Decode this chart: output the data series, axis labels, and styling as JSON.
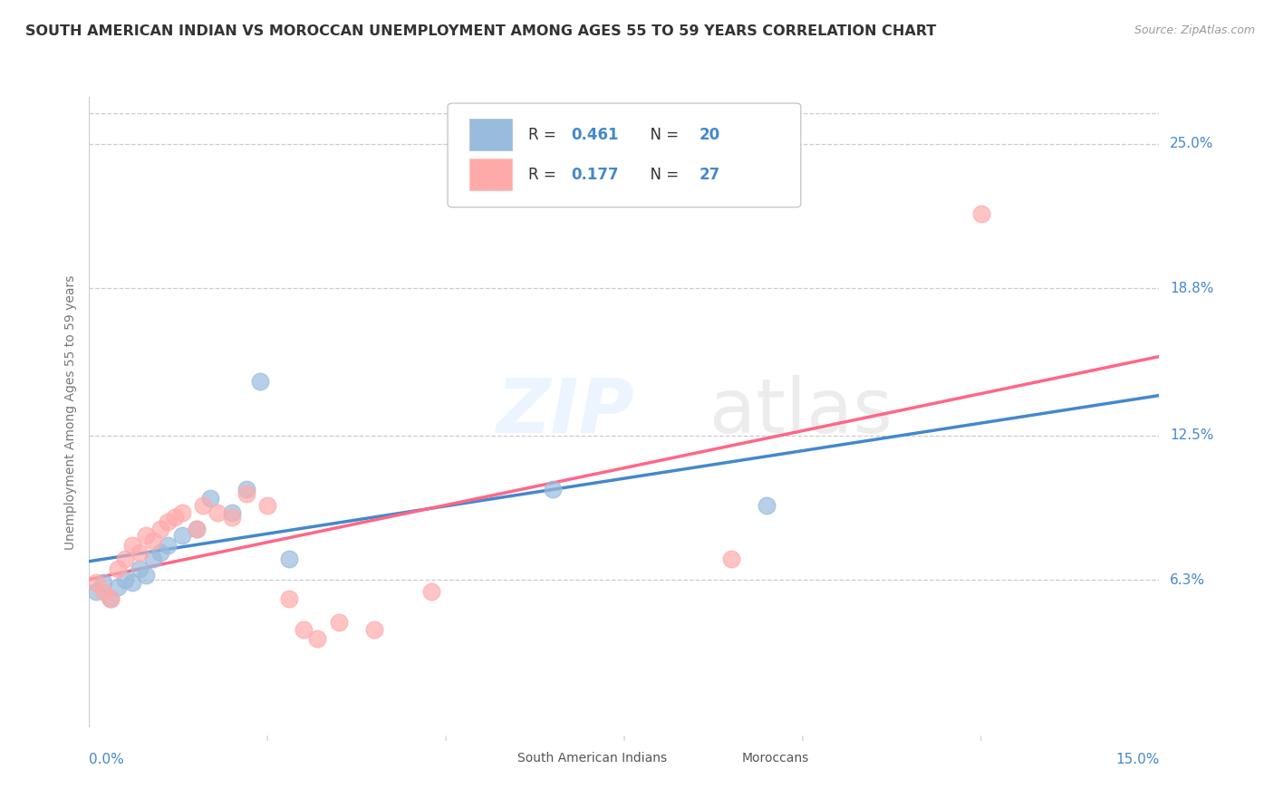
{
  "title": "SOUTH AMERICAN INDIAN VS MOROCCAN UNEMPLOYMENT AMONG AGES 55 TO 59 YEARS CORRELATION CHART",
  "source": "Source: ZipAtlas.com",
  "ylabel": "Unemployment Among Ages 55 to 59 years",
  "xlim": [
    0.0,
    0.15
  ],
  "ylim": [
    0.0,
    0.27
  ],
  "yticks": [
    0.063,
    0.125,
    0.188,
    0.25
  ],
  "ytick_labels": [
    "6.3%",
    "12.5%",
    "18.8%",
    "25.0%"
  ],
  "legend_label1": "South American Indians",
  "legend_label2": "Moroccans",
  "R1": "0.461",
  "N1": "20",
  "R2": "0.177",
  "N2": "27",
  "color_blue": "#99BBDD",
  "color_pink": "#FFAAAA",
  "color_blue_line": "#4488CC",
  "color_pink_line": "#FF6688",
  "color_text_blue": "#4488CC",
  "color_text_gray": "#888888",
  "background_color": "#FFFFFF",
  "grid_color": "#CCCCCC",
  "sa_x": [
    0.001,
    0.002,
    0.003,
    0.004,
    0.005,
    0.006,
    0.007,
    0.008,
    0.009,
    0.01,
    0.011,
    0.013,
    0.015,
    0.017,
    0.02,
    0.022,
    0.024,
    0.028,
    0.065,
    0.095
  ],
  "sa_y": [
    0.058,
    0.062,
    0.055,
    0.06,
    0.063,
    0.062,
    0.068,
    0.065,
    0.072,
    0.075,
    0.078,
    0.082,
    0.085,
    0.098,
    0.092,
    0.102,
    0.148,
    0.072,
    0.102,
    0.095
  ],
  "mo_x": [
    0.001,
    0.002,
    0.003,
    0.004,
    0.005,
    0.006,
    0.007,
    0.008,
    0.009,
    0.01,
    0.011,
    0.012,
    0.013,
    0.015,
    0.016,
    0.018,
    0.02,
    0.022,
    0.025,
    0.028,
    0.03,
    0.032,
    0.035,
    0.04,
    0.048,
    0.09,
    0.125
  ],
  "mo_y": [
    0.062,
    0.058,
    0.055,
    0.068,
    0.072,
    0.078,
    0.075,
    0.082,
    0.08,
    0.085,
    0.088,
    0.09,
    0.092,
    0.085,
    0.095,
    0.092,
    0.09,
    0.1,
    0.095,
    0.055,
    0.042,
    0.038,
    0.045,
    0.042,
    0.058,
    0.072,
    0.22
  ]
}
